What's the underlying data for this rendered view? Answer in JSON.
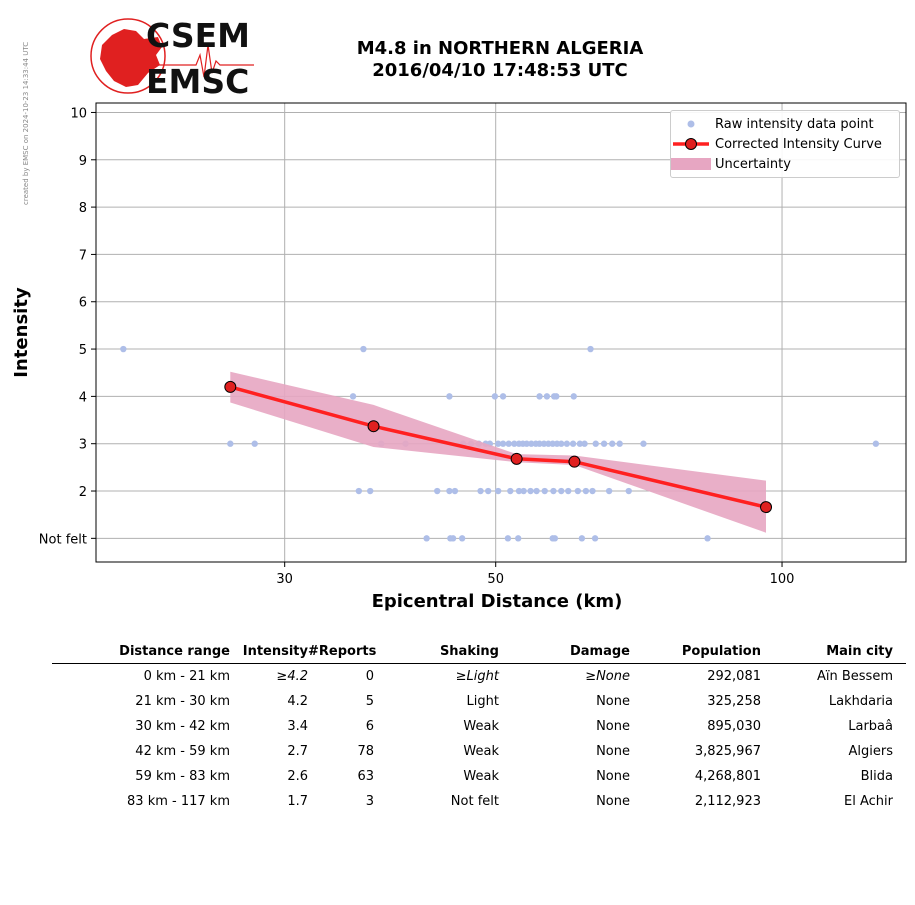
{
  "stamp": "created by EMSC on 2024-10-23 14:33:44 UTC",
  "logo": {
    "line1": "CSEM",
    "line2": "EMSC"
  },
  "title": {
    "line1": "M4.8 in NORTHERN ALGERIA",
    "line2": "2016/04/10 17:48:53 UTC"
  },
  "colors": {
    "raw_points": "#aebee8",
    "curve": "#ff2020",
    "curve_marker": "#e02020",
    "uncertainty": "#e7a6c2",
    "logo_red": "#e02020"
  },
  "chart_data": {
    "type": "scatter",
    "xlabel": "Epicentral Distance (km)",
    "ylabel": "Intensity",
    "x_scale": "log",
    "xlim": [
      19,
      135
    ],
    "ylim": [
      0.5,
      10.2
    ],
    "x_ticks": [
      30,
      50,
      100
    ],
    "x_tick_labels": [
      "30",
      "50",
      "100"
    ],
    "y_ticks": [
      1,
      2,
      3,
      4,
      5,
      6,
      7,
      8,
      9,
      10
    ],
    "y_tick_labels": [
      "Not felt",
      "2",
      "3",
      "4",
      "5",
      "6",
      "7",
      "8",
      "9",
      "10"
    ],
    "grid": true,
    "legend_position": "top-right",
    "legend": [
      "Raw intensity data point",
      "Corrected Intensity Curve",
      "Uncertainty"
    ],
    "raw_points": [
      [
        20.3,
        5
      ],
      [
        36.3,
        5
      ],
      [
        62.9,
        5
      ],
      [
        35.4,
        4
      ],
      [
        44.7,
        4
      ],
      [
        49.9,
        4
      ],
      [
        50.9,
        4
      ],
      [
        55.6,
        4
      ],
      [
        56.6,
        4
      ],
      [
        57.6,
        4
      ],
      [
        57.9,
        4
      ],
      [
        60.4,
        4
      ],
      [
        26.3,
        3
      ],
      [
        27.9,
        3
      ],
      [
        37.9,
        3
      ],
      [
        40.2,
        3
      ],
      [
        46.2,
        3
      ],
      [
        47.1,
        3
      ],
      [
        48.0,
        3
      ],
      [
        48.8,
        3
      ],
      [
        49.3,
        3
      ],
      [
        50.3,
        3
      ],
      [
        50.9,
        3
      ],
      [
        51.6,
        3
      ],
      [
        52.3,
        3
      ],
      [
        52.9,
        3
      ],
      [
        53.4,
        3
      ],
      [
        53.9,
        3
      ],
      [
        54.5,
        3
      ],
      [
        55.1,
        3
      ],
      [
        55.6,
        3
      ],
      [
        56.2,
        3
      ],
      [
        56.8,
        3
      ],
      [
        57.4,
        3
      ],
      [
        58.0,
        3
      ],
      [
        58.6,
        3
      ],
      [
        59.4,
        3
      ],
      [
        60.3,
        3
      ],
      [
        61.3,
        3
      ],
      [
        62.0,
        3
      ],
      [
        63.7,
        3
      ],
      [
        65.0,
        3
      ],
      [
        66.3,
        3
      ],
      [
        67.5,
        3
      ],
      [
        71.5,
        3
      ],
      [
        125.5,
        3
      ],
      [
        35.9,
        2
      ],
      [
        36.9,
        2
      ],
      [
        43.4,
        2
      ],
      [
        44.7,
        2
      ],
      [
        45.3,
        2
      ],
      [
        48.2,
        2
      ],
      [
        49.1,
        2
      ],
      [
        50.3,
        2
      ],
      [
        51.8,
        2
      ],
      [
        52.9,
        2
      ],
      [
        53.5,
        2
      ],
      [
        54.4,
        2
      ],
      [
        55.2,
        2
      ],
      [
        56.3,
        2
      ],
      [
        57.5,
        2
      ],
      [
        58.6,
        2
      ],
      [
        59.6,
        2
      ],
      [
        61.0,
        2
      ],
      [
        62.2,
        2
      ],
      [
        63.2,
        2
      ],
      [
        65.8,
        2
      ],
      [
        69.0,
        2
      ],
      [
        42.3,
        1
      ],
      [
        44.8,
        1
      ],
      [
        45.1,
        1
      ],
      [
        46.1,
        1
      ],
      [
        51.5,
        1
      ],
      [
        52.8,
        1
      ],
      [
        57.4,
        1
      ],
      [
        57.7,
        1
      ],
      [
        61.6,
        1
      ],
      [
        63.6,
        1
      ],
      [
        83.5,
        1
      ]
    ],
    "series": [
      {
        "name": "Corrected Intensity Curve",
        "points": [
          [
            26.3,
            4.2
          ],
          [
            37.2,
            3.37
          ],
          [
            52.6,
            2.68
          ],
          [
            60.5,
            2.62
          ],
          [
            96.2,
            1.66
          ]
        ]
      }
    ],
    "uncertainty": {
      "name": "Uncertainty",
      "upper": [
        [
          26.3,
          4.52
        ],
        [
          37.2,
          3.82
        ],
        [
          52.6,
          2.78
        ],
        [
          60.5,
          2.75
        ],
        [
          96.2,
          2.22
        ]
      ],
      "lower": [
        [
          26.3,
          3.87
        ],
        [
          37.2,
          2.93
        ],
        [
          52.6,
          2.61
        ],
        [
          60.5,
          2.55
        ],
        [
          96.2,
          1.12
        ]
      ]
    }
  },
  "table": {
    "headers": [
      "Distance range",
      "Intensity",
      "#Reports",
      "Shaking",
      "Damage",
      "Population",
      "Main city"
    ],
    "rows": [
      [
        "0 km -   21 km",
        "≥4.2",
        "0",
        "≥Light",
        "≥None",
        "292,081",
        "Aïn Bessem"
      ],
      [
        "21 km -   30 km",
        "4.2",
        "5",
        "Light",
        "None",
        "325,258",
        "Lakhdaria"
      ],
      [
        "30 km -   42 km",
        "3.4",
        "6",
        "Weak",
        "None",
        "895,030",
        "Larbaâ"
      ],
      [
        "42 km -   59 km",
        "2.7",
        "78",
        "Weak",
        "None",
        "3,825,967",
        "Algiers"
      ],
      [
        "59 km -   83 km",
        "2.6",
        "63",
        "Weak",
        "None",
        "4,268,801",
        "Blida"
      ],
      [
        "83 km -  117 km",
        "1.7",
        "3",
        "Not felt",
        "None",
        "2,112,923",
        "El Achir"
      ]
    ]
  }
}
